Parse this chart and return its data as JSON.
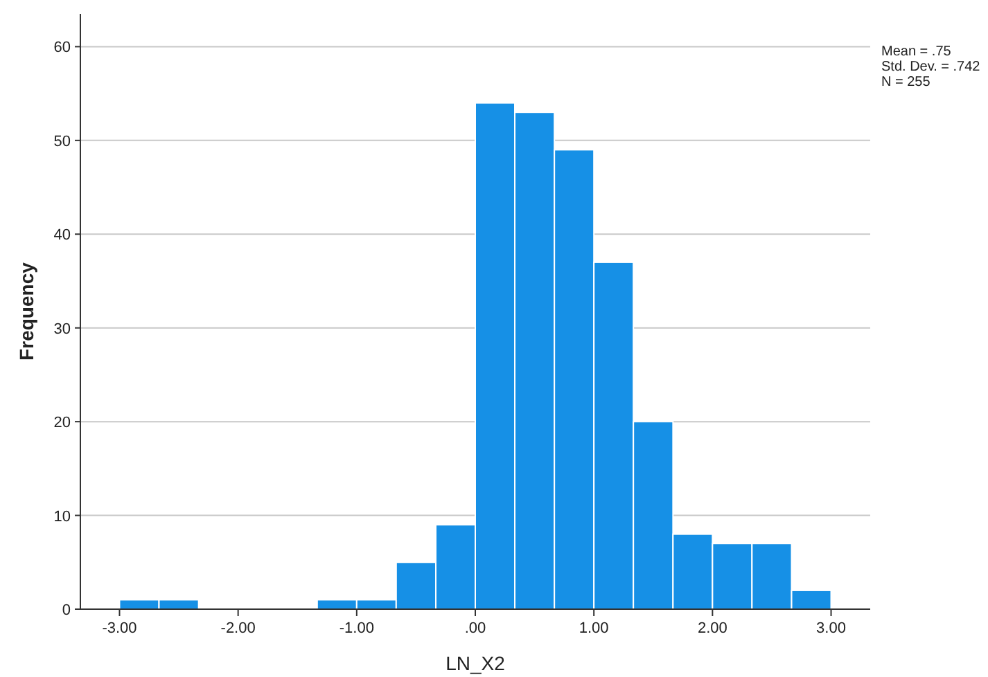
{
  "chart_data": {
    "type": "histogram",
    "xlabel": "LN_X2",
    "ylabel": "Frequency",
    "bins": [
      -3,
      -2.667,
      -2.333,
      -2,
      -1.667,
      -1.333,
      -1,
      -0.667,
      -0.333,
      0,
      0.333,
      0.667,
      1,
      1.333,
      1.667,
      2,
      2.333,
      2.667,
      3
    ],
    "values": [
      1,
      1,
      0,
      0,
      0,
      1,
      1,
      5,
      9,
      54,
      53,
      49,
      37,
      20,
      8,
      7,
      7,
      2
    ],
    "color": "#1690e6",
    "xlim": [
      -3.33,
      3.33
    ],
    "xticks": [
      {
        "value": -3,
        "label": "-3.00"
      },
      {
        "value": -2,
        "label": "-2.00"
      },
      {
        "value": -1,
        "label": "-1.00"
      },
      {
        "value": 0,
        "label": ".00"
      },
      {
        "value": 1,
        "label": "1.00"
      },
      {
        "value": 2,
        "label": "2.00"
      },
      {
        "value": 3,
        "label": "3.00"
      }
    ],
    "ylim": [
      0,
      63.5
    ],
    "yticks": [
      0,
      10,
      20,
      30,
      40,
      50,
      60
    ],
    "grid": "y",
    "annotations": [
      "Mean = .75",
      "Std. Dev. = .742",
      "N = 255"
    ]
  }
}
